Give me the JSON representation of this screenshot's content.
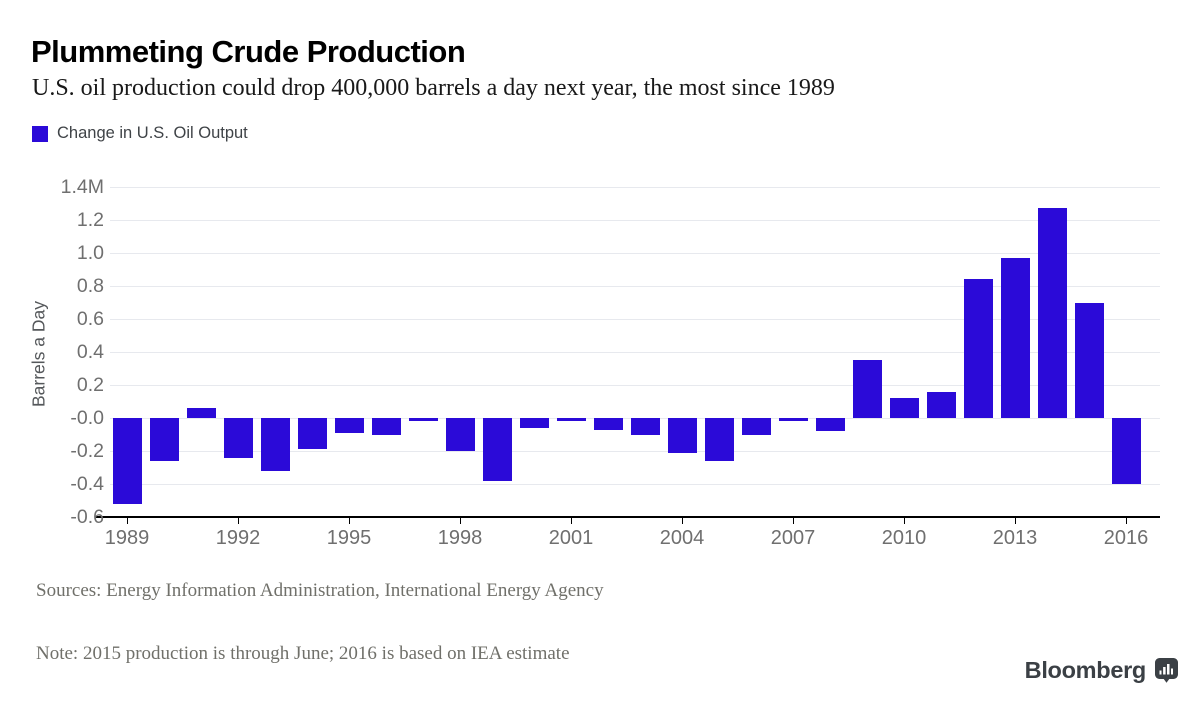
{
  "header": {
    "title": "Plummeting Crude Production",
    "subtitle": "U.S. oil production could drop 400,000 barrels a day next year, the most since 1989"
  },
  "legend": {
    "label": "Change in U.S. Oil Output"
  },
  "chart_data": {
    "type": "bar",
    "title": "Change in U.S. Oil Output",
    "xlabel": "",
    "ylabel": "Barrels a Day",
    "ylim": [
      -0.6,
      1.4
    ],
    "grid": true,
    "legend_position": "top-left",
    "bar_color": "#2B0AD8",
    "categories": [
      1989,
      1990,
      1991,
      1992,
      1993,
      1994,
      1995,
      1996,
      1997,
      1998,
      1999,
      2000,
      2001,
      2002,
      2003,
      2004,
      2005,
      2006,
      2007,
      2008,
      2009,
      2010,
      2011,
      2012,
      2013,
      2014,
      2015,
      2016
    ],
    "values": [
      -0.52,
      -0.26,
      0.06,
      -0.24,
      -0.32,
      -0.19,
      -0.09,
      -0.1,
      -0.02,
      -0.2,
      -0.38,
      -0.06,
      -0.02,
      -0.07,
      -0.1,
      -0.21,
      -0.26,
      -0.1,
      -0.02,
      -0.08,
      0.35,
      0.12,
      0.16,
      0.84,
      0.97,
      1.27,
      0.7,
      -0.4
    ],
    "x_tick_years": [
      1989,
      1992,
      1995,
      1998,
      2001,
      2004,
      2007,
      2010,
      2013,
      2016
    ],
    "y_ticks": [
      {
        "value": 1.4,
        "label": "1.4M"
      },
      {
        "value": 1.2,
        "label": "1.2"
      },
      {
        "value": 1.0,
        "label": "1.0"
      },
      {
        "value": 0.8,
        "label": "0.8"
      },
      {
        "value": 0.6,
        "label": "0.6"
      },
      {
        "value": 0.4,
        "label": "0.4"
      },
      {
        "value": 0.2,
        "label": "0.2"
      },
      {
        "value": 0.0,
        "label": "-0.0"
      },
      {
        "value": -0.2,
        "label": "-0.2"
      },
      {
        "value": -0.4,
        "label": "-0.4"
      },
      {
        "value": -0.6,
        "label": "-0.6"
      }
    ]
  },
  "footer": {
    "sources": "Sources: Energy Information Administration, International Energy Agency",
    "note": "Note: 2015 production is through June; 2016 is based on IEA estimate"
  },
  "branding": {
    "logo_text": "Bloomberg",
    "logo_icon": "bar-chart-bubble-icon"
  },
  "colors": {
    "bar": "#2B0AD8",
    "grid": "#E7E9EE",
    "axis": "#000000",
    "tick_label": "#6F6F6F",
    "footer_text": "#70706A",
    "logo": "#3B4045"
  }
}
